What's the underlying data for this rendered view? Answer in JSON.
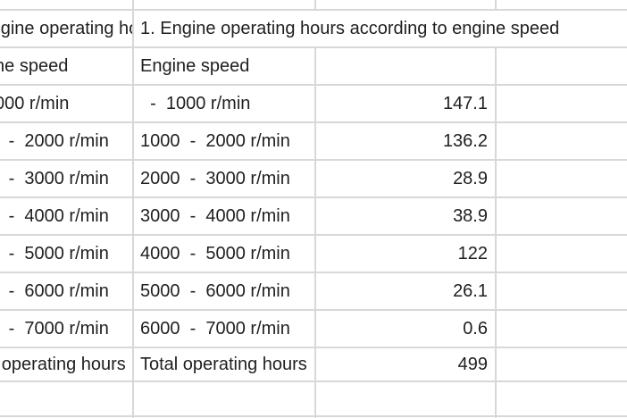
{
  "colors": {
    "grid": "#d8d8d8",
    "text": "#1f1f1f",
    "background": "#ffffff"
  },
  "table": {
    "title": "1. Engine operating hours according to engine speed",
    "header_label": "Engine speed",
    "rows": [
      {
        "label": "  -  1000 r/min",
        "value": "147.1"
      },
      {
        "label": "1000  -  2000 r/min",
        "value": "136.2"
      },
      {
        "label": "2000  -  3000 r/min",
        "value": "28.9"
      },
      {
        "label": "3000  -  4000 r/min",
        "value": "38.9"
      },
      {
        "label": "4000  -  5000 r/min",
        "value": "122"
      },
      {
        "label": "5000  -  6000 r/min",
        "value": "26.1"
      },
      {
        "label": "6000  -  7000 r/min",
        "value": "0.6"
      }
    ],
    "total": {
      "label": "Total operating hours",
      "value": "499"
    }
  }
}
